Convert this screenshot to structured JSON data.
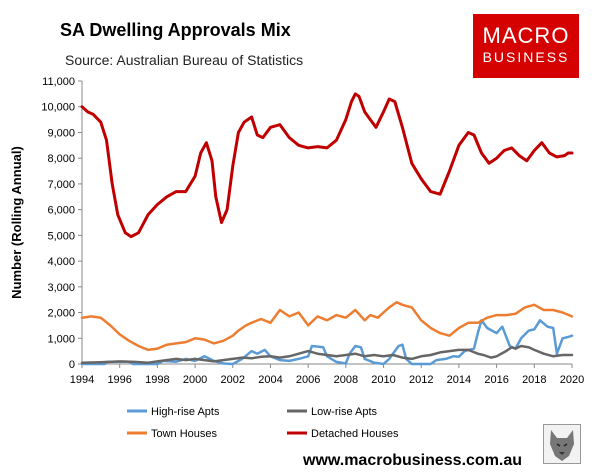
{
  "header": {
    "title": "SA Dwelling Approvals Mix",
    "source": "Source: Australian Bureau of Statistics"
  },
  "logo": {
    "line1": "MACRO",
    "line2": "BUSINESS",
    "color": "#d50000"
  },
  "footer": {
    "url": "www.macrobusiness.com.au"
  },
  "chart_data": {
    "type": "line",
    "title": "SA Dwelling Approvals Mix",
    "ylabel": "Number (Rolling Annual)",
    "xlabel": "",
    "xlim": [
      1994,
      2020
    ],
    "ylim": [
      0,
      11000
    ],
    "x_ticks": [
      "1994",
      "1996",
      "1998",
      "2000",
      "2002",
      "2004",
      "2006",
      "2008",
      "2010",
      "2012",
      "2014",
      "2016",
      "2018",
      "2020"
    ],
    "y_ticks": [
      "0",
      "1,000",
      "2,000",
      "3,000",
      "4,000",
      "5,000",
      "6,000",
      "7,000",
      "8,000",
      "9,000",
      "10,000",
      "11,000"
    ],
    "grid": false,
    "legend_position": "bottom",
    "series": [
      {
        "name": "High-rise Apts",
        "color": "#5b9bd5",
        "width": 2.5,
        "points": [
          [
            1994.0,
            0
          ],
          [
            1995.2,
            0
          ],
          [
            1995.3,
            80
          ],
          [
            1996.5,
            90
          ],
          [
            1996.7,
            0
          ],
          [
            1998.0,
            0
          ],
          [
            1998.3,
            120
          ],
          [
            1999.0,
            90
          ],
          [
            1999.5,
            200
          ],
          [
            2000.0,
            120
          ],
          [
            2000.5,
            300
          ],
          [
            2001.0,
            120
          ],
          [
            2001.5,
            20
          ],
          [
            2002.0,
            0
          ],
          [
            2002.5,
            200
          ],
          [
            2003.0,
            500
          ],
          [
            2003.3,
            400
          ],
          [
            2003.7,
            550
          ],
          [
            2004.0,
            300
          ],
          [
            2004.5,
            150
          ],
          [
            2005.0,
            120
          ],
          [
            2005.5,
            200
          ],
          [
            2006.0,
            300
          ],
          [
            2006.2,
            700
          ],
          [
            2006.8,
            650
          ],
          [
            2007.0,
            300
          ],
          [
            2007.5,
            80
          ],
          [
            2008.0,
            20
          ],
          [
            2008.2,
            400
          ],
          [
            2008.5,
            700
          ],
          [
            2008.8,
            650
          ],
          [
            2009.0,
            200
          ],
          [
            2009.5,
            50
          ],
          [
            2010.0,
            0
          ],
          [
            2010.3,
            200
          ],
          [
            2010.8,
            700
          ],
          [
            2011.0,
            750
          ],
          [
            2011.2,
            200
          ],
          [
            2011.5,
            0
          ],
          [
            2012.5,
            0
          ],
          [
            2012.8,
            150
          ],
          [
            2013.3,
            200
          ],
          [
            2013.7,
            300
          ],
          [
            2014.0,
            280
          ],
          [
            2014.3,
            500
          ],
          [
            2014.8,
            600
          ],
          [
            2015.0,
            1200
          ],
          [
            2015.2,
            1700
          ],
          [
            2015.5,
            1400
          ],
          [
            2016.0,
            1200
          ],
          [
            2016.3,
            1450
          ],
          [
            2016.7,
            700
          ],
          [
            2017.0,
            600
          ],
          [
            2017.3,
            1000
          ],
          [
            2017.7,
            1300
          ],
          [
            2018.0,
            1350
          ],
          [
            2018.3,
            1700
          ],
          [
            2018.7,
            1450
          ],
          [
            2019.0,
            1400
          ],
          [
            2019.2,
            400
          ],
          [
            2019.5,
            1000
          ],
          [
            2019.8,
            1050
          ],
          [
            2020.0,
            1100
          ]
        ]
      },
      {
        "name": "Low-rise Apts",
        "color": "#666666",
        "width": 2.5,
        "points": [
          [
            1994.0,
            50
          ],
          [
            1995.0,
            70
          ],
          [
            1996.0,
            100
          ],
          [
            1996.8,
            80
          ],
          [
            1997.5,
            50
          ],
          [
            1998.0,
            100
          ],
          [
            1998.5,
            150
          ],
          [
            1999.0,
            200
          ],
          [
            1999.5,
            150
          ],
          [
            2000.0,
            200
          ],
          [
            2000.5,
            150
          ],
          [
            2001.0,
            100
          ],
          [
            2001.5,
            150
          ],
          [
            2002.0,
            200
          ],
          [
            2002.5,
            250
          ],
          [
            2003.0,
            220
          ],
          [
            2003.5,
            280
          ],
          [
            2004.0,
            300
          ],
          [
            2004.5,
            250
          ],
          [
            2005.0,
            300
          ],
          [
            2005.5,
            400
          ],
          [
            2006.0,
            500
          ],
          [
            2006.5,
            400
          ],
          [
            2007.0,
            350
          ],
          [
            2007.5,
            300
          ],
          [
            2008.0,
            350
          ],
          [
            2008.5,
            400
          ],
          [
            2009.0,
            300
          ],
          [
            2009.5,
            350
          ],
          [
            2010.0,
            300
          ],
          [
            2010.5,
            350
          ],
          [
            2011.0,
            250
          ],
          [
            2011.5,
            200
          ],
          [
            2012.0,
            300
          ],
          [
            2012.5,
            350
          ],
          [
            2013.0,
            450
          ],
          [
            2013.5,
            500
          ],
          [
            2014.0,
            550
          ],
          [
            2014.5,
            550
          ],
          [
            2015.0,
            400
          ],
          [
            2015.3,
            350
          ],
          [
            2015.7,
            250
          ],
          [
            2016.0,
            300
          ],
          [
            2016.5,
            500
          ],
          [
            2016.8,
            650
          ],
          [
            2017.0,
            600
          ],
          [
            2017.3,
            700
          ],
          [
            2017.7,
            650
          ],
          [
            2018.0,
            550
          ],
          [
            2018.5,
            400
          ],
          [
            2019.0,
            300
          ],
          [
            2019.5,
            350
          ],
          [
            2020.0,
            350
          ]
        ]
      },
      {
        "name": "Town Houses",
        "color": "#ed7d31",
        "width": 2.5,
        "points": [
          [
            1994.0,
            1800
          ],
          [
            1994.5,
            1850
          ],
          [
            1995.0,
            1800
          ],
          [
            1995.5,
            1500
          ],
          [
            1996.0,
            1150
          ],
          [
            1996.5,
            900
          ],
          [
            1997.0,
            700
          ],
          [
            1997.5,
            550
          ],
          [
            1998.0,
            600
          ],
          [
            1998.5,
            750
          ],
          [
            1999.0,
            800
          ],
          [
            1999.5,
            850
          ],
          [
            2000.0,
            1000
          ],
          [
            2000.5,
            950
          ],
          [
            2001.0,
            800
          ],
          [
            2001.5,
            900
          ],
          [
            2002.0,
            1100
          ],
          [
            2002.3,
            1300
          ],
          [
            2002.7,
            1500
          ],
          [
            2003.0,
            1600
          ],
          [
            2003.5,
            1750
          ],
          [
            2004.0,
            1600
          ],
          [
            2004.5,
            2100
          ],
          [
            2005.0,
            1850
          ],
          [
            2005.5,
            2000
          ],
          [
            2006.0,
            1500
          ],
          [
            2006.5,
            1850
          ],
          [
            2007.0,
            1700
          ],
          [
            2007.5,
            1900
          ],
          [
            2008.0,
            1800
          ],
          [
            2008.5,
            2100
          ],
          [
            2009.0,
            1700
          ],
          [
            2009.3,
            1900
          ],
          [
            2009.7,
            1800
          ],
          [
            2010.0,
            2000
          ],
          [
            2010.3,
            2200
          ],
          [
            2010.7,
            2400
          ],
          [
            2011.0,
            2300
          ],
          [
            2011.5,
            2200
          ],
          [
            2012.0,
            1700
          ],
          [
            2012.5,
            1400
          ],
          [
            2013.0,
            1200
          ],
          [
            2013.5,
            1100
          ],
          [
            2014.0,
            1400
          ],
          [
            2014.5,
            1600
          ],
          [
            2015.0,
            1600
          ],
          [
            2015.5,
            1800
          ],
          [
            2016.0,
            1900
          ],
          [
            2016.5,
            1900
          ],
          [
            2017.0,
            1950
          ],
          [
            2017.5,
            2200
          ],
          [
            2018.0,
            2300
          ],
          [
            2018.5,
            2100
          ],
          [
            2019.0,
            2100
          ],
          [
            2019.5,
            2000
          ],
          [
            2020.0,
            1850
          ]
        ]
      },
      {
        "name": "Detached Houses",
        "color": "#c00000",
        "width": 3,
        "points": [
          [
            1994.0,
            10000
          ],
          [
            1994.3,
            9800
          ],
          [
            1994.6,
            9700
          ],
          [
            1995.0,
            9400
          ],
          [
            1995.3,
            8700
          ],
          [
            1995.6,
            7000
          ],
          [
            1995.9,
            5800
          ],
          [
            1996.3,
            5100
          ],
          [
            1996.6,
            4950
          ],
          [
            1997.0,
            5100
          ],
          [
            1997.5,
            5800
          ],
          [
            1998.0,
            6200
          ],
          [
            1998.5,
            6500
          ],
          [
            1999.0,
            6700
          ],
          [
            1999.5,
            6700
          ],
          [
            2000.0,
            7300
          ],
          [
            2000.3,
            8200
          ],
          [
            2000.6,
            8600
          ],
          [
            2000.9,
            7900
          ],
          [
            2001.1,
            6500
          ],
          [
            2001.4,
            5500
          ],
          [
            2001.7,
            6000
          ],
          [
            2002.0,
            7700
          ],
          [
            2002.3,
            9000
          ],
          [
            2002.6,
            9400
          ],
          [
            2003.0,
            9600
          ],
          [
            2003.3,
            8900
          ],
          [
            2003.6,
            8800
          ],
          [
            2004.0,
            9200
          ],
          [
            2004.5,
            9300
          ],
          [
            2005.0,
            8800
          ],
          [
            2005.5,
            8500
          ],
          [
            2006.0,
            8400
          ],
          [
            2006.5,
            8450
          ],
          [
            2007.0,
            8400
          ],
          [
            2007.5,
            8700
          ],
          [
            2008.0,
            9500
          ],
          [
            2008.3,
            10200
          ],
          [
            2008.5,
            10500
          ],
          [
            2008.7,
            10400
          ],
          [
            2009.0,
            9800
          ],
          [
            2009.3,
            9500
          ],
          [
            2009.6,
            9200
          ],
          [
            2010.0,
            9800
          ],
          [
            2010.3,
            10300
          ],
          [
            2010.6,
            10200
          ],
          [
            2011.0,
            9200
          ],
          [
            2011.5,
            7800
          ],
          [
            2012.0,
            7200
          ],
          [
            2012.5,
            6700
          ],
          [
            2013.0,
            6600
          ],
          [
            2013.5,
            7500
          ],
          [
            2014.0,
            8500
          ],
          [
            2014.5,
            9000
          ],
          [
            2014.8,
            8900
          ],
          [
            2015.2,
            8200
          ],
          [
            2015.6,
            7800
          ],
          [
            2016.0,
            8000
          ],
          [
            2016.4,
            8300
          ],
          [
            2016.8,
            8400
          ],
          [
            2017.2,
            8100
          ],
          [
            2017.6,
            7900
          ],
          [
            2018.0,
            8300
          ],
          [
            2018.4,
            8600
          ],
          [
            2018.8,
            8200
          ],
          [
            2019.2,
            8050
          ],
          [
            2019.6,
            8100
          ],
          [
            2019.8,
            8200
          ],
          [
            2020.0,
            8200
          ]
        ]
      }
    ]
  }
}
